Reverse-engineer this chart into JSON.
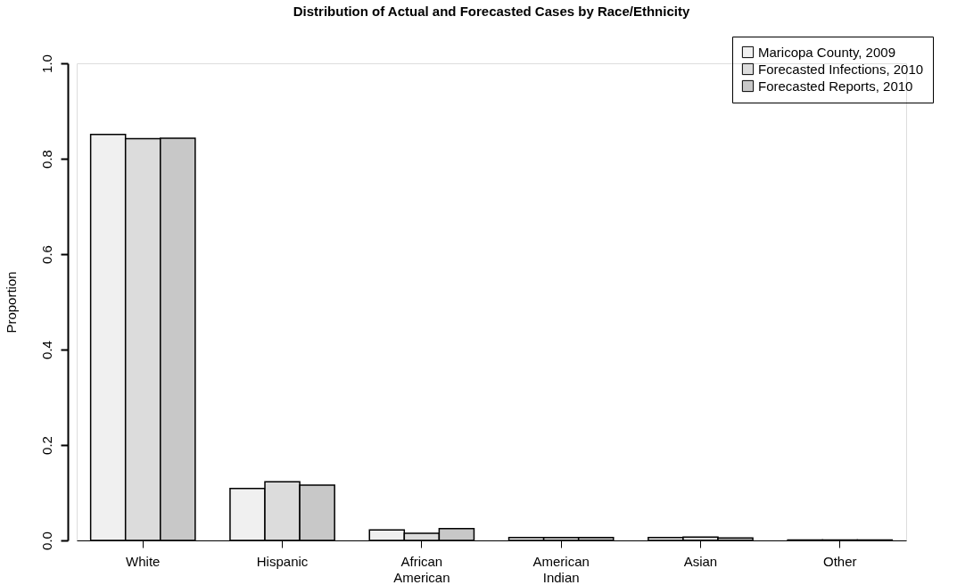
{
  "chart_data": {
    "type": "bar",
    "title": "Distribution of Actual and Forecasted Cases by Race/Ethnicity",
    "ylabel": "Proportion",
    "categories": [
      "White",
      "Hispanic",
      "African American",
      "American Indian",
      "Asian",
      "Other"
    ],
    "series": [
      {
        "name": "Maricopa County, 2009",
        "color": "#f0f0f0",
        "values": [
          0.851,
          0.109,
          0.022,
          0.006,
          0.006,
          0.001
        ]
      },
      {
        "name": "Forecasted Infections, 2010",
        "color": "#dcdcdc",
        "values": [
          0.842,
          0.123,
          0.015,
          0.006,
          0.007,
          0.001
        ]
      },
      {
        "name": "Forecasted Reports, 2010",
        "color": "#c8c8c8",
        "values": [
          0.843,
          0.116,
          0.025,
          0.006,
          0.005,
          0.001
        ]
      }
    ],
    "ylim": [
      0,
      1
    ],
    "yticks": [
      {
        "value": 0,
        "label": "0.0"
      },
      {
        "value": 0.2,
        "label": "0.2"
      },
      {
        "value": 0.4,
        "label": "0.4"
      },
      {
        "value": 0.6,
        "label": "0.6"
      },
      {
        "value": 0.8,
        "label": "0.8"
      },
      {
        "value": 1,
        "label": "1.0"
      }
    ],
    "grid": false,
    "legend": "top right"
  }
}
